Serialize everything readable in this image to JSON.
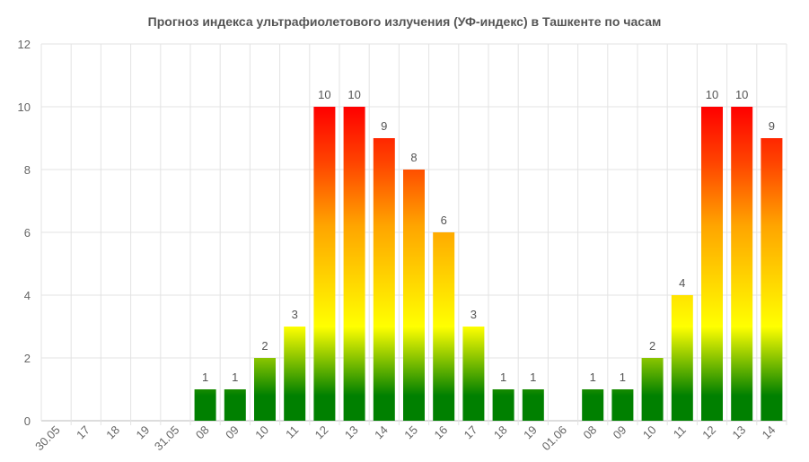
{
  "chart_data": {
    "type": "bar",
    "title": "Прогноз индекса ультрафиолетового излучения (УФ-индекс) в Ташкенте по часам",
    "xlabel": "",
    "ylabel": "",
    "ylim": [
      0,
      12
    ],
    "yticks": [
      0,
      2,
      4,
      6,
      8,
      10,
      12
    ],
    "grid": true,
    "legend": "none",
    "categories": [
      "30.05",
      "17",
      "18",
      "19",
      "31.05",
      "08",
      "09",
      "10",
      "11",
      "12",
      "13",
      "14",
      "15",
      "16",
      "17",
      "18",
      "19",
      "01.06",
      "08",
      "09",
      "10",
      "11",
      "12",
      "13",
      "14"
    ],
    "values": [
      null,
      null,
      null,
      null,
      null,
      1,
      1,
      2,
      3,
      10,
      10,
      9,
      8,
      6,
      3,
      1,
      1,
      null,
      1,
      1,
      2,
      4,
      10,
      10,
      9
    ],
    "colors": {
      "low": "#008000",
      "moderate": "#ffff00",
      "high": "#ffa500",
      "very_high": "#ff4500",
      "extreme": "#ff0000"
    }
  }
}
